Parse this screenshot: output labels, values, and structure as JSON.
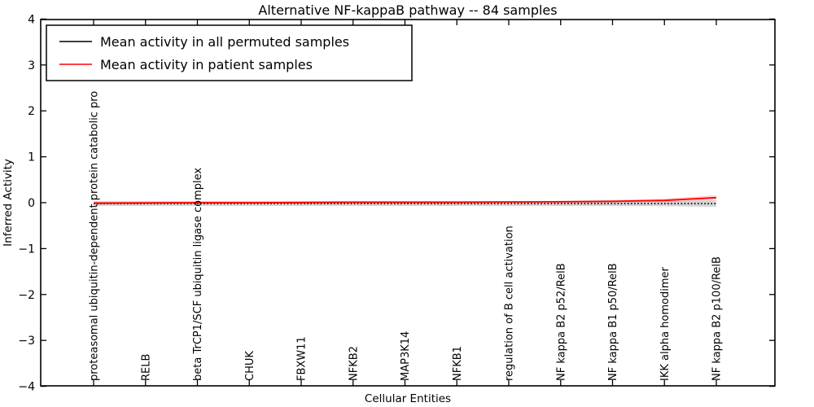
{
  "figure": {
    "title": "Alternative NF-kappaB pathway -- 84 samples",
    "xlabel": "Cellular Entities",
    "ylabel": "Inferred Activity",
    "colors": {
      "patient_line": "#ff0000",
      "permuted_line": "#000000",
      "permuted_band": "#aaaaaa",
      "patient_band": "#ff9999"
    }
  },
  "chart_data": {
    "type": "line",
    "title": "Alternative NF-kappaB pathway -- 84 samples",
    "xlabel": "Cellular Entities",
    "ylabel": "Inferred Activity",
    "ylim": [
      -4,
      4
    ],
    "yticks": [
      -4,
      -3,
      -2,
      -1,
      0,
      1,
      2,
      3,
      4
    ],
    "grid": false,
    "legend_position": "upper left",
    "categories": [
      "proteasomal ubiquitin-dependent protein catabolic pro",
      "RELB",
      "beta TrCP1/SCF ubiquitin ligase complex",
      "CHUK",
      "FBXW11",
      "NFKB2",
      "MAP3K14",
      "NFKB1",
      "regulation of B cell activation",
      "NF kappa B2 p52/RelB",
      "NF kappa B1 p50/RelB",
      "IKK alpha homodimer",
      "NF kappa B2 p100/RelB"
    ],
    "series": [
      {
        "name": "Mean activity in all permuted samples",
        "color": "#000000",
        "linestyle": "dotted",
        "values": [
          -0.02,
          -0.02,
          -0.02,
          -0.02,
          -0.02,
          -0.02,
          -0.02,
          -0.02,
          -0.02,
          -0.02,
          -0.02,
          -0.02,
          -0.02
        ],
        "band_halfwidth": [
          0.05,
          0.05,
          0.05,
          0.05,
          0.05,
          0.05,
          0.05,
          0.05,
          0.05,
          0.05,
          0.05,
          0.055,
          0.07
        ],
        "band_color": "#aaaaaa",
        "band_opacity": 0.5
      },
      {
        "name": "Mean activity in patient samples",
        "color": "#ff0000",
        "linestyle": "solid",
        "values": [
          -0.01,
          -0.005,
          0.0,
          0.0,
          0.005,
          0.01,
          0.01,
          0.01,
          0.015,
          0.02,
          0.03,
          0.05,
          0.11
        ],
        "band_halfwidth": [
          0.03,
          0.025,
          0.02,
          0.02,
          0.02,
          0.02,
          0.02,
          0.02,
          0.02,
          0.025,
          0.03,
          0.04,
          0.055
        ],
        "band_color": "#ff0000",
        "band_opacity": 0.16
      }
    ]
  }
}
